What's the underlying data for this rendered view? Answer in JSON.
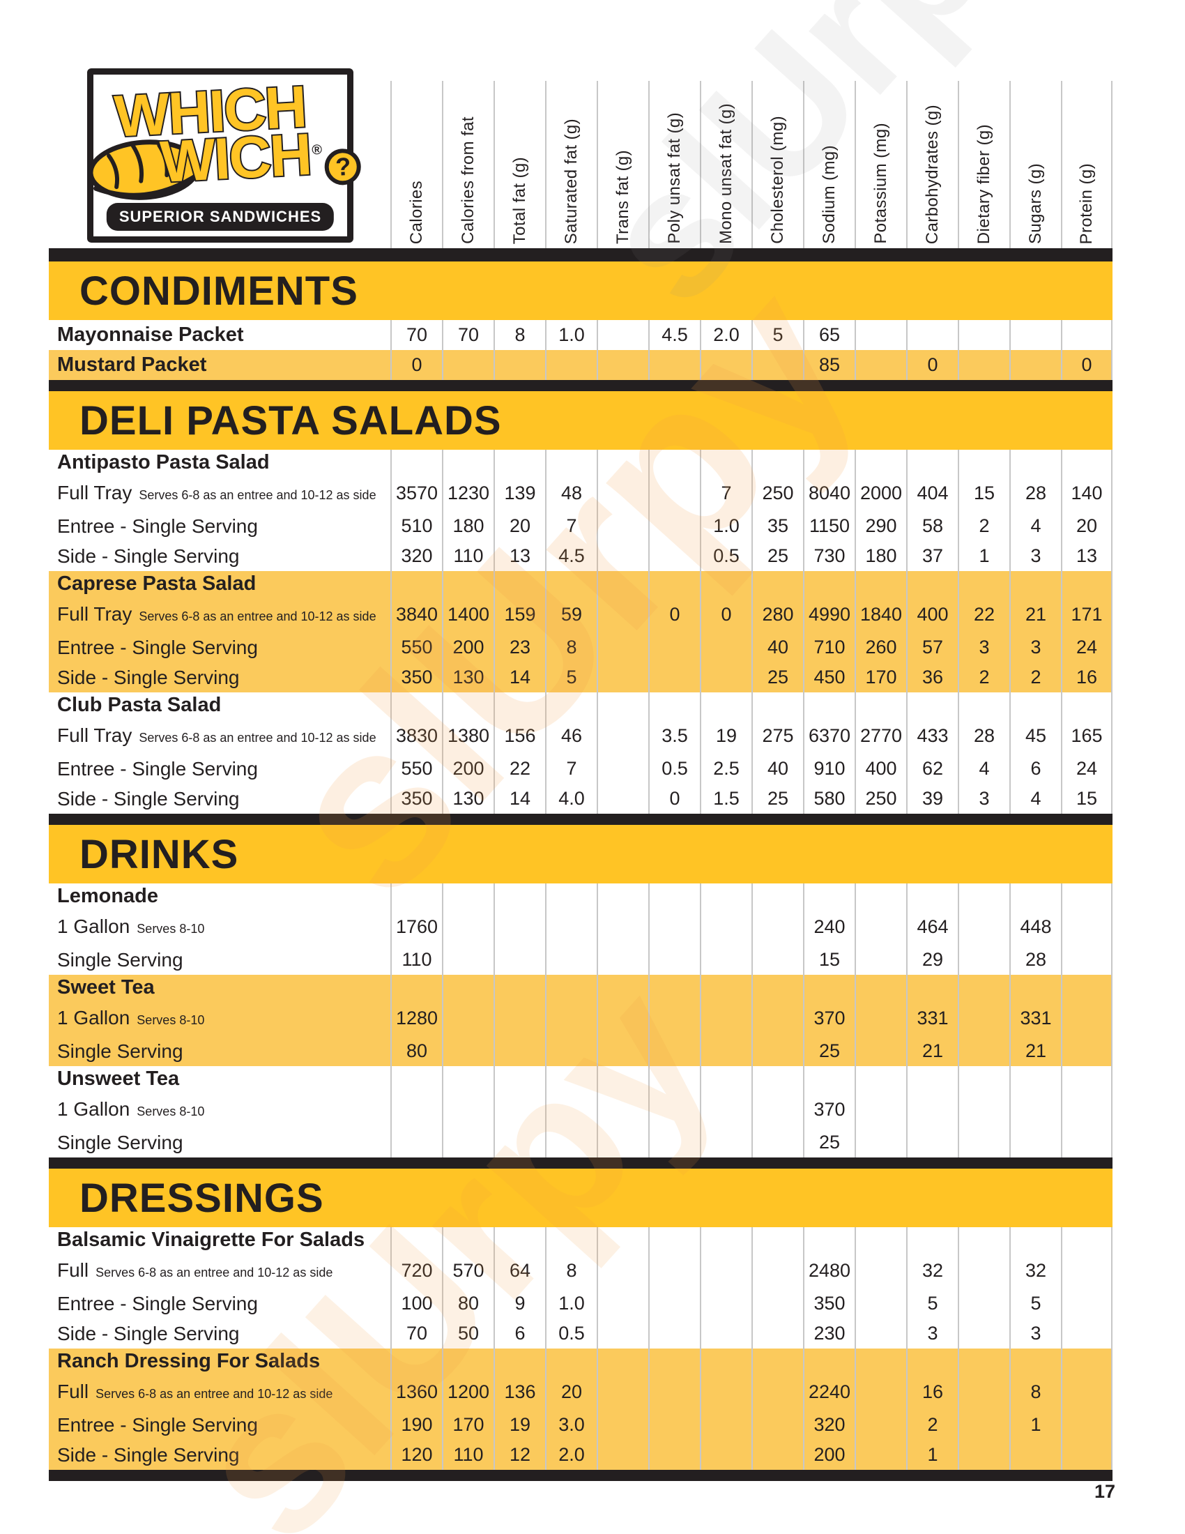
{
  "brand": {
    "word1": "WHICH",
    "word2": "WICH",
    "reg": "®",
    "qmark": "?",
    "tagline": "SUPERIOR SANDWICHES"
  },
  "watermark": {
    "text": "slUrpy"
  },
  "page_number": "17",
  "colors": {
    "banner_yellow": "#FFC425",
    "highlight_yellow": "#FBCA5C",
    "black": "#231F20",
    "gridline_gray": "#C7C7C7"
  },
  "columns": [
    "Calories",
    "Calories from fat",
    "Total fat (g)",
    "Saturated fat (g)",
    "Trans fat (g)",
    "Poly unsat fat (g)",
    "Mono unsat fat (g)",
    "Cholesterol (mg)",
    "Sodium (mg)",
    "Potassium (mg)",
    "Carbohydrates (g)",
    "Dietary fiber (g)",
    "Sugars (g)",
    "Protein (g)"
  ],
  "sections": [
    {
      "title": "CONDIMENTS",
      "rows": [
        {
          "type": "item",
          "strong": true,
          "highlight": false,
          "label": "Mayonnaise Packet",
          "note": "",
          "values": [
            "70",
            "70",
            "8",
            "1.0",
            "",
            "4.5",
            "2.0",
            "5",
            "65",
            "",
            "",
            "",
            "",
            ""
          ]
        },
        {
          "type": "item",
          "strong": true,
          "highlight": true,
          "label": "Mustard Packet",
          "note": "",
          "values": [
            "0",
            "",
            "",
            "",
            "",
            "",
            "",
            "",
            "85",
            "",
            "0",
            "",
            "",
            "0"
          ]
        }
      ]
    },
    {
      "title": "DELI PASTA SALADS",
      "rows": [
        {
          "type": "group",
          "highlight": false,
          "label": "Antipasto Pasta Salad"
        },
        {
          "type": "item",
          "highlight": false,
          "label": "Full Tray",
          "note": "Serves 6-8 as an entree  and 10-12 as side",
          "values": [
            "3570",
            "1230",
            "139",
            "48",
            "",
            "",
            "7",
            "250",
            "8040",
            "2000",
            "404",
            "15",
            "28",
            "140"
          ]
        },
        {
          "type": "item",
          "highlight": false,
          "label": "Entree - Single Serving",
          "note": "",
          "values": [
            "510",
            "180",
            "20",
            "7",
            "",
            "",
            "1.0",
            "35",
            "1150",
            "290",
            "58",
            "2",
            "4",
            "20"
          ]
        },
        {
          "type": "item",
          "highlight": false,
          "label": "Side - Single Serving",
          "note": "",
          "values": [
            "320",
            "110",
            "13",
            "4.5",
            "",
            "",
            "0.5",
            "25",
            "730",
            "180",
            "37",
            "1",
            "3",
            "13"
          ]
        },
        {
          "type": "group",
          "highlight": true,
          "label": "Caprese Pasta Salad"
        },
        {
          "type": "item",
          "highlight": true,
          "label": "Full Tray",
          "note": "Serves 6-8 as an entree  and 10-12 as side",
          "values": [
            "3840",
            "1400",
            "159",
            "59",
            "",
            "0",
            "0",
            "280",
            "4990",
            "1840",
            "400",
            "22",
            "21",
            "171"
          ]
        },
        {
          "type": "item",
          "highlight": true,
          "label": "Entree - Single Serving",
          "note": "",
          "values": [
            "550",
            "200",
            "23",
            "8",
            "",
            "",
            "",
            "40",
            "710",
            "260",
            "57",
            "3",
            "3",
            "24"
          ]
        },
        {
          "type": "item",
          "highlight": true,
          "label": "Side - Single Serving",
          "note": "",
          "values": [
            "350",
            "130",
            "14",
            "5",
            "",
            "",
            "",
            "25",
            "450",
            "170",
            "36",
            "2",
            "2",
            "16"
          ]
        },
        {
          "type": "group",
          "highlight": false,
          "label": "Club Pasta Salad"
        },
        {
          "type": "item",
          "highlight": false,
          "label": "Full Tray",
          "note": "Serves 6-8 as an entree  and 10-12 as side",
          "values": [
            "3830",
            "1380",
            "156",
            "46",
            "",
            "3.5",
            "19",
            "275",
            "6370",
            "2770",
            "433",
            "28",
            "45",
            "165"
          ]
        },
        {
          "type": "item",
          "highlight": false,
          "label": "Entree - Single Serving",
          "note": "",
          "values": [
            "550",
            "200",
            "22",
            "7",
            "",
            "0.5",
            "2.5",
            "40",
            "910",
            "400",
            "62",
            "4",
            "6",
            "24"
          ]
        },
        {
          "type": "item",
          "highlight": false,
          "label": "Side - Single Serving",
          "note": "",
          "values": [
            "350",
            "130",
            "14",
            "4.0",
            "",
            "0",
            "1.5",
            "25",
            "580",
            "250",
            "39",
            "3",
            "4",
            "15"
          ]
        }
      ]
    },
    {
      "title": "DRINKS",
      "rows": [
        {
          "type": "group",
          "highlight": false,
          "label": "Lemonade"
        },
        {
          "type": "item",
          "highlight": false,
          "label": "1 Gallon",
          "note": "Serves 8-10",
          "values": [
            "1760",
            "",
            "",
            "",
            "",
            "",
            "",
            "",
            "240",
            "",
            "464",
            "",
            "448",
            ""
          ]
        },
        {
          "type": "item",
          "highlight": false,
          "label": "Single Serving",
          "note": "",
          "values": [
            "110",
            "",
            "",
            "",
            "",
            "",
            "",
            "",
            "15",
            "",
            "29",
            "",
            "28",
            ""
          ]
        },
        {
          "type": "group",
          "highlight": true,
          "label": "Sweet Tea"
        },
        {
          "type": "item",
          "highlight": true,
          "label": "1 Gallon",
          "note": "Serves 8-10",
          "values": [
            "1280",
            "",
            "",
            "",
            "",
            "",
            "",
            "",
            "370",
            "",
            "331",
            "",
            "331",
            ""
          ]
        },
        {
          "type": "item",
          "highlight": true,
          "label": "Single Serving",
          "note": "",
          "values": [
            "80",
            "",
            "",
            "",
            "",
            "",
            "",
            "",
            "25",
            "",
            "21",
            "",
            "21",
            ""
          ]
        },
        {
          "type": "group",
          "highlight": false,
          "label": "Unsweet Tea"
        },
        {
          "type": "item",
          "highlight": false,
          "label": "1 Gallon",
          "note": "Serves 8-10",
          "values": [
            "",
            "",
            "",
            "",
            "",
            "",
            "",
            "",
            "370",
            "",
            "",
            "",
            "",
            ""
          ]
        },
        {
          "type": "item",
          "highlight": false,
          "label": "Single Serving",
          "note": "",
          "values": [
            "",
            "",
            "",
            "",
            "",
            "",
            "",
            "",
            "25",
            "",
            "",
            "",
            "",
            ""
          ]
        }
      ]
    },
    {
      "title": "DRESSINGS",
      "rows": [
        {
          "type": "group",
          "highlight": false,
          "label": "Balsamic Vinaigrette For Salads"
        },
        {
          "type": "item",
          "highlight": false,
          "label": "Full",
          "note": "Serves 6-8 as an entree  and 10-12 as side",
          "values": [
            "720",
            "570",
            "64",
            "8",
            "",
            "",
            "",
            "",
            "2480",
            "",
            "32",
            "",
            "32",
            ""
          ]
        },
        {
          "type": "item",
          "highlight": false,
          "label": "Entree - Single Serving",
          "note": "",
          "values": [
            "100",
            "80",
            "9",
            "1.0",
            "",
            "",
            "",
            "",
            "350",
            "",
            "5",
            "",
            "5",
            ""
          ]
        },
        {
          "type": "item",
          "highlight": false,
          "label": "Side - Single Serving",
          "note": "",
          "values": [
            "70",
            "50",
            "6",
            "0.5",
            "",
            "",
            "",
            "",
            "230",
            "",
            "3",
            "",
            "3",
            ""
          ]
        },
        {
          "type": "group",
          "highlight": true,
          "label": "Ranch Dressing For Salads"
        },
        {
          "type": "item",
          "highlight": true,
          "label": "Full",
          "note": "Serves 6-8 as an entree  and 10-12 as side",
          "values": [
            "1360",
            "1200",
            "136",
            "20",
            "",
            "",
            "",
            "",
            "2240",
            "",
            "16",
            "",
            "8",
            ""
          ]
        },
        {
          "type": "item",
          "highlight": true,
          "label": "Entree - Single Serving",
          "note": "",
          "values": [
            "190",
            "170",
            "19",
            "3.0",
            "",
            "",
            "",
            "",
            "320",
            "",
            "2",
            "",
            "1",
            ""
          ]
        },
        {
          "type": "item",
          "highlight": true,
          "label": "Side - Single Serving",
          "note": "",
          "values": [
            "120",
            "110",
            "12",
            "2.0",
            "",
            "",
            "",
            "",
            "200",
            "",
            "1",
            "",
            "",
            ""
          ]
        }
      ]
    }
  ]
}
